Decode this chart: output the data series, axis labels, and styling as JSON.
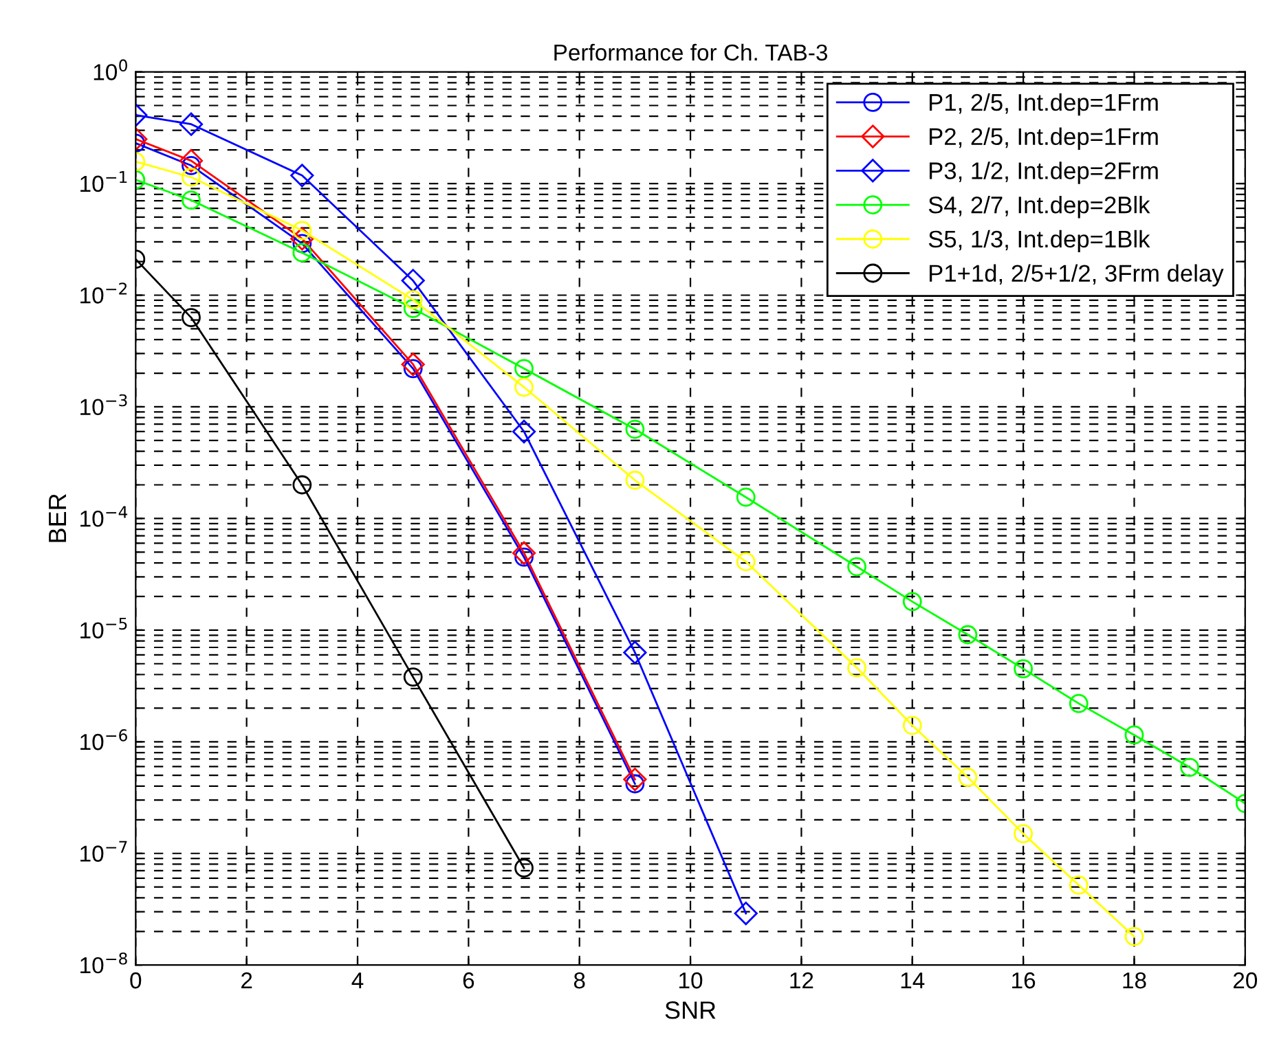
{
  "chart_data": {
    "type": "line",
    "title": "Performance for Ch. TAB-3",
    "xlabel": "SNR",
    "ylabel": "BER",
    "log": "y",
    "grid": true,
    "legend": "top right",
    "line_style": "solid",
    "xlim": [
      0,
      20
    ],
    "xticks": [
      0,
      2,
      4,
      6,
      8,
      10,
      12,
      14,
      16,
      18,
      20
    ],
    "ylim": [
      1e-08,
      1
    ],
    "yticks": [
      {
        "value": 1e-08,
        "label": "10$^{−8}$"
      },
      {
        "value": 1e-07,
        "label": "10$^{−7}$"
      },
      {
        "value": 1e-06,
        "label": "10$^{−6}$"
      },
      {
        "value": 1e-05,
        "label": "10$^{−5}$"
      },
      {
        "value": 0.0001,
        "label": "10$^{−4}$"
      },
      {
        "value": 0.001,
        "label": "10$^{−3}$"
      },
      {
        "value": 0.01,
        "label": "10$^{−2}$"
      },
      {
        "value": 0.1,
        "label": "10$^{−1}$"
      },
      {
        "value": 1,
        "label": "10$^{0}$"
      }
    ],
    "series": [
      {
        "name": "P1, 2/5, Int.dep=1Frm",
        "color": "#0000ff",
        "marker": "circle",
        "x": [
          0,
          1,
          3,
          5,
          7,
          9
        ],
        "values": [
          0.23,
          0.145,
          0.029,
          0.0022,
          4.5e-05,
          4.2e-07
        ]
      },
      {
        "name": "P2, 2/5, Int.dep=1Frm",
        "color": "#ff0000",
        "marker": "diamond",
        "x": [
          0,
          1,
          3,
          5,
          7,
          9
        ],
        "values": [
          0.25,
          0.16,
          0.032,
          0.0024,
          4.9e-05,
          4.6e-07
        ]
      },
      {
        "name": "P3, 1/2, Int.dep=2Frm",
        "color": "#0000ff",
        "marker": "diamond",
        "x": [
          0,
          1,
          3,
          5,
          7,
          9,
          11
        ],
        "values": [
          0.41,
          0.34,
          0.118,
          0.0135,
          0.0006,
          6.3e-06,
          2.9e-08
        ]
      },
      {
        "name": "S4, 2/7, Int.dep=2Blk",
        "color": "#00ff00",
        "marker": "circle",
        "x": [
          0,
          1,
          3,
          5,
          7,
          9,
          11,
          13,
          14,
          15,
          16,
          17,
          18,
          19,
          20
        ],
        "values": [
          0.108,
          0.071,
          0.024,
          0.0076,
          0.0022,
          0.00063,
          0.000155,
          3.7e-05,
          1.8e-05,
          9.1e-06,
          4.5e-06,
          2.2e-06,
          1.15e-06,
          5.9e-07,
          2.8e-07
        ]
      },
      {
        "name": "S5, 1/3, Int.dep=1Blk",
        "color": "#ffff00",
        "marker": "circle",
        "x": [
          0,
          1,
          3,
          5,
          7,
          9,
          11,
          13,
          14,
          15,
          16,
          17,
          18
        ],
        "values": [
          0.157,
          0.114,
          0.038,
          0.0091,
          0.0015,
          0.00022,
          4.1e-05,
          4.6e-06,
          1.4e-06,
          4.8e-07,
          1.5e-07,
          5.2e-08,
          1.8e-08
        ]
      },
      {
        "name": "P1+1d, 2/5+1/2, 3Frm delay",
        "color": "#000000",
        "marker": "circle",
        "x": [
          0,
          1,
          3,
          5,
          7
        ],
        "values": [
          0.021,
          0.0063,
          0.0002,
          3.8e-06,
          7.4e-08
        ]
      }
    ]
  }
}
